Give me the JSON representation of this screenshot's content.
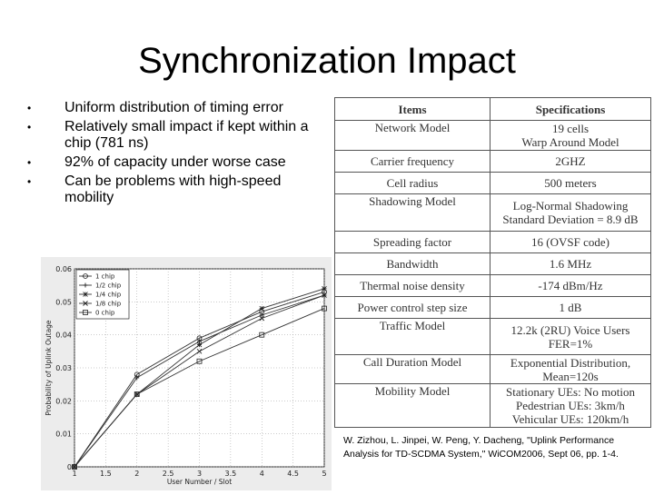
{
  "slide": {
    "title": "Synchronization Impact",
    "bullets": [
      "Uniform distribution of timing error",
      "Relatively small impact if kept within a chip (781 ns)",
      "92% of capacity under worse case",
      "Can be problems with high-speed mobility"
    ],
    "citation": "W. Zizhou, L. Jinpei, W. Peng, Y. Dacheng, \"Uplink Performance Analysis for TD-SCDMA System,\" WiCOM2006, Sept 06, pp. 1-4."
  },
  "spec_table": {
    "headers": [
      "Items",
      "Specifications"
    ],
    "rows": [
      {
        "item": "Network Model",
        "spec": [
          "19 cells",
          "Warp Around Model"
        ]
      },
      {
        "item": "Carrier frequency",
        "spec": [
          "2GHZ"
        ]
      },
      {
        "item": "Cell radius",
        "spec": [
          "500 meters"
        ]
      },
      {
        "item": "Shadowing Model",
        "spec": [
          "Log-Normal Shadowing",
          "Standard Deviation = 8.9 dB"
        ]
      },
      {
        "item": "Spreading factor",
        "spec": [
          "16 (OVSF code)"
        ]
      },
      {
        "item": "Bandwidth",
        "spec": [
          "1.6 MHz"
        ]
      },
      {
        "item": "Thermal noise density",
        "spec": [
          "-174 dBm/Hz"
        ]
      },
      {
        "item": "Power control step size",
        "spec": [
          "1 dB"
        ]
      },
      {
        "item": "Traffic Model",
        "spec": [
          "12.2k (2RU) Voice Users",
          "FER=1%"
        ]
      },
      {
        "item": "Call Duration Model",
        "spec": [
          "Exponential Distribution,",
          "Mean=120s"
        ]
      },
      {
        "item": "Mobility Model",
        "spec": [
          "Stationary UEs: No motion",
          "Pedestrian UEs: 3km/h",
          "Vehicular UEs: 120km/h"
        ]
      }
    ]
  },
  "chart_data": {
    "type": "line",
    "xlabel": "User Number / Slot",
    "ylabel": "Probability of Uplink Outage",
    "xlim": [
      1,
      5
    ],
    "ylim": [
      0,
      0.06
    ],
    "xticks": [
      "1",
      "1.5",
      "2",
      "2.5",
      "3",
      "3.5",
      "4",
      "4.5",
      "5"
    ],
    "yticks": [
      "0",
      "0.01",
      "0.02",
      "0.03",
      "0.04",
      "0.05",
      "0.06"
    ],
    "x": [
      1,
      2,
      3,
      4,
      5
    ],
    "grid": true,
    "legend_position": "top-left",
    "series": [
      {
        "name": "1 chip",
        "marker": "o",
        "values": [
          0.0,
          0.028,
          0.039,
          0.047,
          0.053
        ]
      },
      {
        "name": "1/2 chip",
        "marker": "+",
        "values": [
          0.0,
          0.027,
          0.038,
          0.046,
          0.052
        ]
      },
      {
        "name": "1/4 chip",
        "marker": "*",
        "values": [
          0.0,
          0.022,
          0.037,
          0.048,
          0.054
        ]
      },
      {
        "name": "1/8 chip",
        "marker": "x",
        "values": [
          0.0,
          0.022,
          0.035,
          0.045,
          0.052
        ]
      },
      {
        "name": "0 chip",
        "marker": "square",
        "values": [
          0.0,
          0.022,
          0.032,
          0.04,
          0.048
        ]
      }
    ]
  }
}
